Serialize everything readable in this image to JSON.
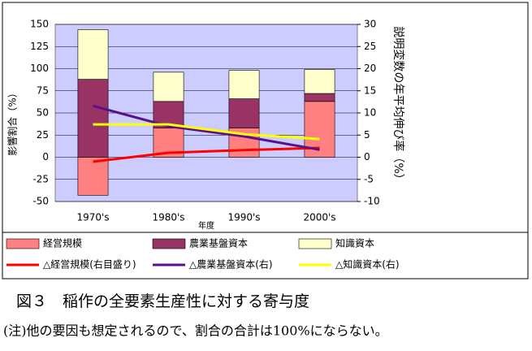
{
  "chart_data": {
    "type": "bar",
    "categories": [
      "1970's",
      "1980's",
      "1990's",
      "2000's"
    ],
    "x_label": "年度",
    "y_label": "影響割合（%）",
    "y2_label": "説明変数の年平均伸び率（%）",
    "ylim": [
      -50,
      150
    ],
    "yticks": [
      -50,
      -25,
      0,
      25,
      50,
      75,
      100,
      125,
      150
    ],
    "y2lim": [
      -10,
      30
    ],
    "y2ticks": [
      -10,
      -5,
      0,
      5,
      10,
      15,
      20,
      25,
      30
    ],
    "grid": true,
    "series": [
      {
        "name": "経営規模",
        "type": "bar",
        "color": "#ff8080",
        "values": [
          -43,
          33,
          33,
          63
        ]
      },
      {
        "name": "農業基盤資本",
        "type": "bar",
        "color": "#993366",
        "values": [
          88,
          30,
          33,
          9
        ]
      },
      {
        "name": "知識資本",
        "type": "bar",
        "color": "#ffffcc",
        "values": [
          56,
          33,
          32,
          27
        ]
      },
      {
        "name": "△経営規模(右目盛り)",
        "type": "line",
        "axis": "y2",
        "color": "#ff0000",
        "values": [
          -1,
          1,
          1.6,
          2.1
        ]
      },
      {
        "name": "△農業基盤資本(右)",
        "type": "line",
        "axis": "y2",
        "color": "#5b0f8a",
        "values": [
          11.6,
          7,
          4.7,
          1.7
        ]
      },
      {
        "name": "△知識資本(右)",
        "type": "line",
        "axis": "y2",
        "color": "#ffff00",
        "values": [
          7.4,
          7.4,
          5.2,
          4.1
        ]
      }
    ]
  },
  "caption": "図３　稲作の全要素生産性に対する寄与度",
  "note": "(注)他の要因も想定されるので、割合の合計は100%にならない。"
}
